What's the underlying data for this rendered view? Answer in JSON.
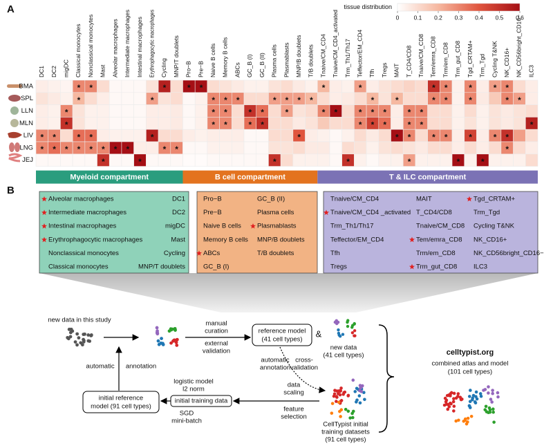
{
  "panel_labels": [
    "A",
    "B"
  ],
  "chart_data": {
    "type": "heatmap",
    "colorbar_title": "tissue distribution",
    "zlim": [
      0,
      0.6
    ],
    "zticks": [
      0,
      0.1,
      0.2,
      0.3,
      0.4,
      0.5,
      0.6
    ],
    "color_scale": [
      "#ffffff",
      "#f6b8a0",
      "#e0553e",
      "#a50f15"
    ],
    "rows": [
      "BMA",
      "SPL",
      "LLN",
      "MLN",
      "LIV",
      "LNG",
      "JEJ"
    ],
    "column_groups": [
      {
        "name": "Myeloid compartment",
        "color": "#2a9d7e",
        "categories": [
          "DC1",
          "DC2",
          "migDC",
          "Classical monocytes",
          "Nonclassical monocytes",
          "Mast",
          "Alveolar macrophages",
          "Intermediate macrophages",
          "Intestinal macrophages",
          "Erythrophagocytic macrophages",
          "Cycling",
          "MNP/T doublets"
        ]
      },
      {
        "name": "B cell compartment",
        "color": "#e3731f",
        "categories": [
          "Pro−B",
          "Pre−B",
          "Naive B cells",
          "Memory B cells",
          "ABCs",
          "GC_B (I)",
          "GC_B (II)",
          "Plasma cells",
          "Plasmablasts",
          "MNP/B doublets",
          "T/B doublets"
        ]
      },
      {
        "name": "T & ILC compartment",
        "color": "#7b72b5",
        "categories": [
          "Tnaive/CM_CD4",
          "Tnaive/CM_CD4_activated",
          "Trm_Th1/Th17",
          "Teffector/EM_CD4",
          "Tfh",
          "Tregs",
          "MAIT",
          "T_CD4/CD8",
          "Tnaive/CM_CD8",
          "Tem/emra_CD8",
          "Trm/em_CD8",
          "Trm_gut_CD8",
          "Tgd_CRTAM+",
          "Trm_Tgd",
          "Cycling T&NK",
          "NK_CD16+",
          "NK_CD56bright_CD16−",
          "ILC3"
        ]
      }
    ],
    "values": [
      [
        0.05,
        0.04,
        0.03,
        0.3,
        0.3,
        0.1,
        0.02,
        0.02,
        0.02,
        0.08,
        0.55,
        0.1,
        0.6,
        0.6,
        0.1,
        0.08,
        0.06,
        0.04,
        0.04,
        0.08,
        0.1,
        0.06,
        0.04,
        0.2,
        0.05,
        0.04,
        0.25,
        0.05,
        0.08,
        0.1,
        0.12,
        0.1,
        0.5,
        0.3,
        0.04,
        0.3,
        0.05,
        0.25,
        0.3,
        0.1,
        0.05
      ],
      [
        0.08,
        0.06,
        0.04,
        0.2,
        0.1,
        0.05,
        0.02,
        0.02,
        0.02,
        0.25,
        0.08,
        0.1,
        0.02,
        0.04,
        0.3,
        0.3,
        0.3,
        0.1,
        0.1,
        0.25,
        0.25,
        0.25,
        0.2,
        0.1,
        0.05,
        0.06,
        0.1,
        0.2,
        0.08,
        0.2,
        0.1,
        0.1,
        0.3,
        0.3,
        0.04,
        0.3,
        0.06,
        0.15,
        0.3,
        0.25,
        0.05
      ],
      [
        0.05,
        0.04,
        0.3,
        0.08,
        0.04,
        0.04,
        0.02,
        0.02,
        0.02,
        0.05,
        0.05,
        0.06,
        0.02,
        0.04,
        0.3,
        0.3,
        0.1,
        0.5,
        0.35,
        0.1,
        0.25,
        0.08,
        0.1,
        0.3,
        0.6,
        0.1,
        0.3,
        0.3,
        0.3,
        0.05,
        0.3,
        0.3,
        0.1,
        0.1,
        0.04,
        0.1,
        0.04,
        0.08,
        0.06,
        0.08,
        0.1
      ],
      [
        0.05,
        0.04,
        0.5,
        0.08,
        0.04,
        0.04,
        0.02,
        0.02,
        0.02,
        0.05,
        0.05,
        0.06,
        0.02,
        0.04,
        0.3,
        0.3,
        0.1,
        0.35,
        0.5,
        0.1,
        0.1,
        0.06,
        0.08,
        0.15,
        0.1,
        0.1,
        0.3,
        0.45,
        0.35,
        0.05,
        0.3,
        0.3,
        0.1,
        0.1,
        0.04,
        0.08,
        0.04,
        0.08,
        0.06,
        0.08,
        0.55
      ],
      [
        0.3,
        0.3,
        0.1,
        0.35,
        0.35,
        0.05,
        0.04,
        0.04,
        0.04,
        0.55,
        0.1,
        0.1,
        0.05,
        0.04,
        0.05,
        0.05,
        0.05,
        0.02,
        0.02,
        0.1,
        0.1,
        0.4,
        0.05,
        0.04,
        0.02,
        0.04,
        0.1,
        0.06,
        0.1,
        0.6,
        0.3,
        0.1,
        0.3,
        0.3,
        0.05,
        0.45,
        0.05,
        0.3,
        0.5,
        0.25,
        0.1
      ],
      [
        0.3,
        0.35,
        0.3,
        0.3,
        0.3,
        0.3,
        0.6,
        0.6,
        0.05,
        0.05,
        0.3,
        0.3,
        0.02,
        0.02,
        0.04,
        0.04,
        0.04,
        0.02,
        0.02,
        0.08,
        0.08,
        0.1,
        0.06,
        0.06,
        0.02,
        0.1,
        0.08,
        0.04,
        0.08,
        0.1,
        0.08,
        0.06,
        0.1,
        0.1,
        0.05,
        0.1,
        0.05,
        0.1,
        0.3,
        0.1,
        0.05
      ],
      [
        0.02,
        0.02,
        0.02,
        0.02,
        0.02,
        0.5,
        0.02,
        0.02,
        0.6,
        0.02,
        0.02,
        0.02,
        0.01,
        0.01,
        0.02,
        0.02,
        0.02,
        0.02,
        0.02,
        0.5,
        0.1,
        0.04,
        0.04,
        0.04,
        0.02,
        0.5,
        0.04,
        0.02,
        0.04,
        0.04,
        0.25,
        0.04,
        0.04,
        0.04,
        0.6,
        0.04,
        0.6,
        0.04,
        0.04,
        0.04,
        0.1
      ]
    ],
    "cell_labels": [
      [
        null,
        null,
        null,
        "*",
        "*",
        null,
        null,
        null,
        null,
        null,
        "*",
        null,
        "*",
        "*",
        null,
        null,
        null,
        null,
        null,
        null,
        null,
        null,
        null,
        "*",
        null,
        null,
        "*",
        null,
        null,
        null,
        null,
        null,
        "*",
        "*",
        null,
        "*",
        null,
        "*",
        "*",
        null,
        null
      ],
      [
        null,
        null,
        null,
        "*",
        null,
        null,
        null,
        null,
        null,
        "*",
        null,
        null,
        null,
        null,
        "*",
        "*",
        "*",
        null,
        null,
        "*",
        "*",
        "*",
        "*",
        null,
        null,
        null,
        null,
        "*",
        null,
        "*",
        null,
        null,
        "*",
        "*",
        null,
        "*",
        null,
        null,
        "*",
        "*",
        null
      ],
      [
        null,
        null,
        "*",
        null,
        null,
        null,
        null,
        null,
        null,
        null,
        null,
        null,
        null,
        null,
        "*",
        "*",
        null,
        "*",
        "*",
        null,
        "*",
        null,
        null,
        "*",
        "*",
        null,
        "*",
        "*",
        "*",
        null,
        "*",
        "*",
        null,
        null,
        null,
        null,
        null,
        null,
        null,
        null,
        null
      ],
      [
        null,
        null,
        "*",
        null,
        null,
        null,
        null,
        null,
        null,
        null,
        null,
        null,
        null,
        null,
        "*",
        "*",
        null,
        "*",
        "*",
        null,
        null,
        null,
        null,
        null,
        null,
        null,
        "*",
        "*",
        "*",
        null,
        "*",
        "*",
        null,
        null,
        null,
        null,
        null,
        null,
        null,
        null,
        "*"
      ],
      [
        "*",
        "*",
        null,
        "*",
        "*",
        null,
        null,
        null,
        null,
        "*",
        null,
        null,
        null,
        null,
        null,
        null,
        null,
        null,
        null,
        null,
        null,
        "*",
        null,
        null,
        null,
        null,
        null,
        null,
        null,
        "*",
        "*",
        null,
        "*",
        "*",
        null,
        "*",
        null,
        "*",
        "*",
        null,
        null
      ],
      [
        "*",
        "*",
        "*",
        "*",
        "*",
        "*",
        "*",
        "*",
        null,
        null,
        "*",
        "*",
        null,
        null,
        null,
        null,
        null,
        null,
        null,
        null,
        null,
        null,
        null,
        null,
        null,
        null,
        null,
        null,
        null,
        null,
        null,
        null,
        null,
        null,
        null,
        null,
        null,
        null,
        "*",
        null,
        null
      ],
      [
        null,
        null,
        null,
        null,
        null,
        "*",
        null,
        null,
        "*",
        null,
        null,
        null,
        null,
        null,
        null,
        null,
        null,
        null,
        null,
        "*",
        null,
        null,
        null,
        null,
        null,
        "*",
        null,
        null,
        null,
        null,
        "*",
        null,
        null,
        null,
        "*",
        null,
        "*",
        null,
        null,
        null,
        null
      ]
    ]
  },
  "panel_b": {
    "boxes": [
      {
        "fill": "#8fd2b9",
        "columns": [
          [
            {
              "text": "Alveolar macrophages",
              "new": true
            },
            {
              "text": "Intermediate macrophages",
              "new": true
            },
            {
              "text": "Intestinal macrophages",
              "new": true
            },
            {
              "text": "Erythrophagocytic macrophages",
              "new": true
            },
            {
              "text": "Nonclassical monocytes"
            },
            {
              "text": "Classical monocytes"
            }
          ],
          [
            {
              "text": "DC1"
            },
            {
              "text": "DC2"
            },
            {
              "text": "migDC"
            },
            {
              "text": "Mast"
            },
            {
              "text": "Cycling"
            },
            {
              "text": "MNP/T doublets"
            }
          ]
        ]
      },
      {
        "fill": "#f2b384",
        "columns": [
          [
            {
              "text": "Pro−B"
            },
            {
              "text": "Pre−B"
            },
            {
              "text": "Naive B cells"
            },
            {
              "text": "Memory B cells"
            },
            {
              "text": "ABCs",
              "new": true
            },
            {
              "text": "GC_B (I)"
            }
          ],
          [
            {
              "text": "GC_B (II)"
            },
            {
              "text": "Plasma cells"
            },
            {
              "text": "Plasmablasts",
              "new": true
            },
            {
              "text": "MNP/B doublets"
            },
            {
              "text": "T/B doublets"
            }
          ]
        ]
      },
      {
        "fill": "#bab4dd",
        "columns": [
          [
            {
              "text": "Tnaive/CM_CD4"
            },
            {
              "text": "Tnaive/CM_CD4 _activated",
              "new": true
            },
            {
              "text": "Trm_Th1/Th17"
            },
            {
              "text": "Teffector/EM_CD4"
            },
            {
              "text": "Tfh"
            },
            {
              "text": "Tregs"
            }
          ],
          [
            {
              "text": "MAIT"
            },
            {
              "text": "T_CD4/CD8"
            },
            {
              "text": "Tnaive/CM_CD8"
            },
            {
              "text": "Tem/emra_CD8",
              "new": true
            },
            {
              "text": "Trm/em_CD8"
            },
            {
              "text": "Trm_gut_CD8",
              "new": true
            }
          ],
          [
            {
              "text": "Tgd_CRTAM+",
              "new": true
            },
            {
              "text": "Trm_Tgd"
            },
            {
              "text": "Cycling T&NK"
            },
            {
              "text": "NK_CD16+"
            },
            {
              "text": "NK_CD56bright_CD16−"
            },
            {
              "text": "ILC3"
            }
          ]
        ]
      }
    ],
    "workflow": {
      "new_data_study": "new data in this study",
      "manual_curation": [
        "manual",
        "curation"
      ],
      "external_validation": [
        "external",
        "validation"
      ],
      "reference_model": [
        "reference model",
        "(41 cell types)"
      ],
      "ampersand": "&",
      "new_data": [
        "new data",
        "(41 cell types)"
      ],
      "site": "celltypist.org",
      "combined": [
        "combined atlas and model",
        "(101 cell types)"
      ],
      "auto_annotation_left": [
        "automatic",
        "annotation"
      ],
      "auto_annotation_mid": [
        "automatic",
        "annotation"
      ],
      "cross_validation": [
        "cross-",
        "validation"
      ],
      "initial_reference_model": [
        "initial reference",
        "model (91 cell types)"
      ],
      "logistic": [
        "logistic model",
        "l2 norm"
      ],
      "sgd": [
        "SGD",
        "mini-batch"
      ],
      "initial_training_data": "initial training data",
      "data_scaling": [
        "data",
        "scaling"
      ],
      "feature_selection": [
        "feature",
        "selection"
      ],
      "training_datasets": [
        "CellTypist initial",
        "training datasets",
        "(91 cell types)"
      ]
    }
  }
}
